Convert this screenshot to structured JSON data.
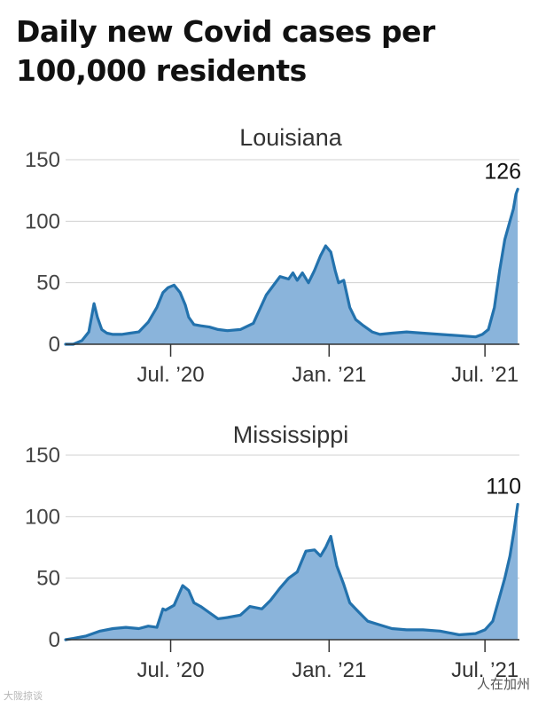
{
  "title": "Daily new Covid cases per 100,000 residents",
  "watermark": {
    "left": "大陇掠谈",
    "right": "人在加州"
  },
  "colors": {
    "line": "#2372ad",
    "fill": "#8ab4db",
    "grid": "#d0d0d0"
  },
  "chart_data": [
    {
      "type": "area",
      "title": "Louisiana",
      "x_axis": {
        "type": "date",
        "range": [
          "2020-03-01",
          "2021-08-10"
        ],
        "ticks": [
          {
            "date": "2020-07-01",
            "label": "Jul. ’20"
          },
          {
            "date": "2021-01-01",
            "label": "Jan. ’21"
          },
          {
            "date": "2021-07-01",
            "label": "Jul. ’21"
          }
        ]
      },
      "y_axis": {
        "ticks": [
          0,
          50,
          100,
          150
        ],
        "ylim": [
          0,
          150
        ]
      },
      "annotation": {
        "date": "2021-08-08",
        "value": 126,
        "label": "126"
      },
      "x": [
        "2020-03-01",
        "2020-03-10",
        "2020-03-20",
        "2020-03-28",
        "2020-04-03",
        "2020-04-07",
        "2020-04-12",
        "2020-04-18",
        "2020-04-25",
        "2020-05-05",
        "2020-05-15",
        "2020-05-25",
        "2020-06-05",
        "2020-06-15",
        "2020-06-22",
        "2020-06-28",
        "2020-07-05",
        "2020-07-12",
        "2020-07-18",
        "2020-07-22",
        "2020-07-28",
        "2020-08-05",
        "2020-08-15",
        "2020-08-25",
        "2020-09-05",
        "2020-09-20",
        "2020-10-05",
        "2020-10-20",
        "2020-11-05",
        "2020-11-15",
        "2020-11-20",
        "2020-11-25",
        "2020-12-01",
        "2020-12-08",
        "2020-12-15",
        "2020-12-22",
        "2020-12-28",
        "2021-01-03",
        "2021-01-08",
        "2021-01-12",
        "2021-01-18",
        "2021-01-25",
        "2021-02-01",
        "2021-02-10",
        "2021-02-20",
        "2021-03-01",
        "2021-03-15",
        "2021-04-01",
        "2021-04-20",
        "2021-05-10",
        "2021-06-01",
        "2021-06-20",
        "2021-06-28",
        "2021-07-05",
        "2021-07-12",
        "2021-07-18",
        "2021-07-24",
        "2021-07-30",
        "2021-08-03",
        "2021-08-06",
        "2021-08-08"
      ],
      "y": [
        0,
        0,
        3,
        10,
        33,
        22,
        12,
        9,
        8,
        8,
        9,
        10,
        18,
        30,
        42,
        46,
        48,
        42,
        32,
        22,
        16,
        15,
        14,
        12,
        11,
        12,
        17,
        40,
        55,
        53,
        58,
        52,
        58,
        50,
        60,
        72,
        80,
        75,
        60,
        50,
        52,
        30,
        20,
        15,
        10,
        8,
        9,
        10,
        9,
        8,
        7,
        6,
        8,
        12,
        30,
        60,
        85,
        100,
        110,
        122,
        126
      ]
    },
    {
      "type": "area",
      "title": "Mississippi",
      "x_axis": {
        "type": "date",
        "range": [
          "2020-03-01",
          "2021-08-10"
        ],
        "ticks": [
          {
            "date": "2020-07-01",
            "label": "Jul. ’20"
          },
          {
            "date": "2021-01-01",
            "label": "Jan. ’21"
          },
          {
            "date": "2021-07-01",
            "label": "Jul. ’21"
          }
        ]
      },
      "y_axis": {
        "ticks": [
          0,
          50,
          100,
          150
        ],
        "ylim": [
          0,
          150
        ]
      },
      "annotation": {
        "date": "2021-08-08",
        "value": 110,
        "label": "110"
      },
      "x": [
        "2020-03-01",
        "2020-03-10",
        "2020-03-25",
        "2020-04-10",
        "2020-04-25",
        "2020-05-10",
        "2020-05-25",
        "2020-06-05",
        "2020-06-15",
        "2020-06-22",
        "2020-06-25",
        "2020-07-05",
        "2020-07-15",
        "2020-07-22",
        "2020-07-28",
        "2020-08-05",
        "2020-08-15",
        "2020-08-25",
        "2020-09-05",
        "2020-09-20",
        "2020-10-01",
        "2020-10-15",
        "2020-10-25",
        "2020-11-05",
        "2020-11-15",
        "2020-11-25",
        "2020-12-05",
        "2020-12-15",
        "2020-12-22",
        "2020-12-28",
        "2021-01-03",
        "2021-01-10",
        "2021-01-18",
        "2021-01-25",
        "2021-02-05",
        "2021-02-15",
        "2021-03-01",
        "2021-03-15",
        "2021-04-01",
        "2021-04-20",
        "2021-05-10",
        "2021-06-01",
        "2021-06-20",
        "2021-07-01",
        "2021-07-10",
        "2021-07-18",
        "2021-07-24",
        "2021-07-30",
        "2021-08-04",
        "2021-08-08"
      ],
      "y": [
        0,
        1,
        3,
        7,
        9,
        10,
        9,
        11,
        10,
        25,
        24,
        28,
        44,
        40,
        30,
        27,
        22,
        17,
        18,
        20,
        27,
        25,
        32,
        42,
        50,
        55,
        72,
        73,
        68,
        75,
        84,
        60,
        45,
        30,
        22,
        15,
        12,
        9,
        8,
        8,
        7,
        4,
        5,
        8,
        15,
        35,
        50,
        68,
        90,
        110
      ]
    }
  ]
}
